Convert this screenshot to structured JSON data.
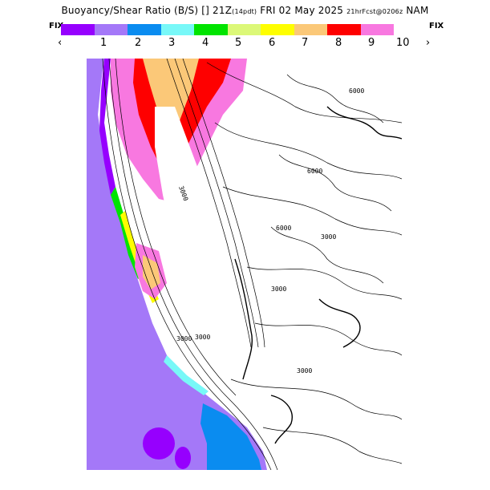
{
  "header": {
    "title_main": "Buoyancy/Shear Ratio (B/S) [] 21Z",
    "title_paren": "(14pdt)",
    "title_date": "FRI 02 May 2025",
    "title_fcst": "21hrFcst@0206z",
    "title_model": "NAM"
  },
  "scale": {
    "fix_left": "FIX",
    "fix_right": "FIX",
    "prev_arrow": "‹",
    "next_arrow": "›",
    "ticks": [
      "1",
      "2",
      "3",
      "4",
      "5",
      "6",
      "7",
      "8",
      "9",
      "10"
    ],
    "colors": [
      "#9600fe",
      "#a478f8",
      "#0a8cf0",
      "#78f8f8",
      "#00e400",
      "#dcf878",
      "#fefe00",
      "#fbc878",
      "#fe0000",
      "#f878e0"
    ]
  },
  "map": {
    "contour_labels": [
      "3000",
      "3000",
      "3000",
      "6000",
      "6000",
      "6000",
      "3000",
      "3000",
      "3000"
    ]
  }
}
